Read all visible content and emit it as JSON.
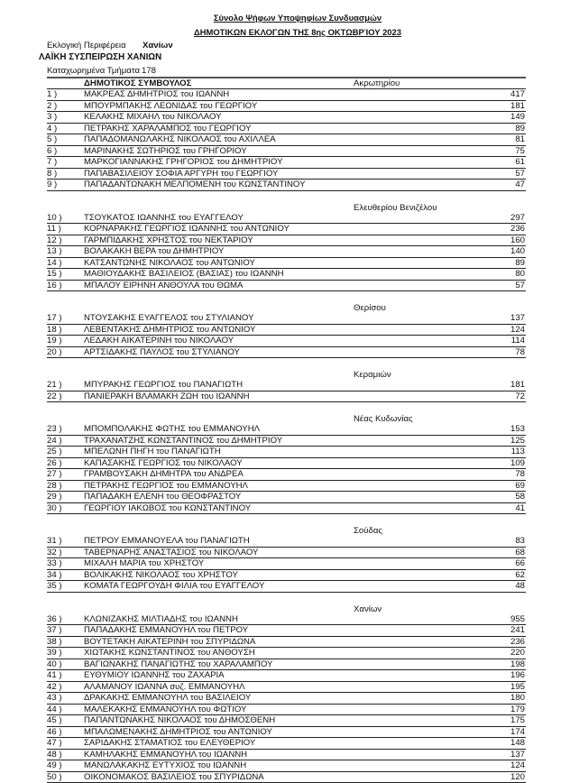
{
  "header": {
    "title": "Σύνολο Ψήφων Υποψηφίων Συνδυασμών",
    "subtitle": "ΔΗΜΟΤΙΚΩΝ ΕΚΛΟΓΩΝ ΤΗΣ  8ης ΟΚΤΩΒΡΊΟΥ 2023",
    "region_label": "Εκλογική Περιφέρεια",
    "region_value": "Χανίων",
    "party": "ΛΑΪΚΗ ΣΥΣΠΕΙΡΩΣΗ ΧΑΝΙΩΝ",
    "registered_label": "Καταχωρημένα Τμήματα",
    "registered_value": "178",
    "column_label": "ΔΗΜΟΤΙΚΟΣ ΣΥΜΒΟΥΛΟΣ"
  },
  "groups": [
    {
      "heading": "Ακρωτηρίου",
      "rows": [
        {
          "num": "1 )",
          "name": "ΜΑΚΡΕΑΣ ΔΗΜΗΤΡΙΟΣ του ΙΩΑΝΝΗ",
          "votes": "417"
        },
        {
          "num": "2 )",
          "name": "ΜΠΟΥΡΜΠΑΚΗΣ ΛΕΩΝΙΔΑΣ του ΓΕΩΡΓΙΟΥ",
          "votes": "181"
        },
        {
          "num": "3 )",
          "name": "ΚΕΛΑΚΗΣ ΜΙΧΑΗΛ του ΝΙΚΟΛΑΟΥ",
          "votes": "149"
        },
        {
          "num": "4 )",
          "name": "ΠΕΤΡΑΚΗΣ ΧΑΡΑΛΑΜΠΟΣ του ΓΕΩΡΓΙΟΥ",
          "votes": "89"
        },
        {
          "num": "5 )",
          "name": "ΠΑΠΑΔΟΜΑΝΩΛΑΚΗΣ ΝΙΚΟΛΑΟΣ του ΑΧΙΛΛΕΑ",
          "votes": "81"
        },
        {
          "num": "6 )",
          "name": "ΜΑΡΙΝΑΚΗΣ ΣΩΤΗΡΙΟΣ του ΓΡΗΓΟΡΙΟΥ",
          "votes": "75"
        },
        {
          "num": "7 )",
          "name": "ΜΑΡΚΟΓΙΑΝΝΑΚΗΣ ΓΡΗΓΟΡΙΟΣ του ΔΗΜΗΤΡΙΟΥ",
          "votes": "61"
        },
        {
          "num": "8 )",
          "name": "ΠΑΠΑΒΑΣΙΛΕΙΟΥ ΣΟΦΙΑ ΑΡΓΥΡΗ του ΓΕΩΡΓΙΟΥ",
          "votes": "57"
        },
        {
          "num": "9 )",
          "name": "ΠΑΠΑΔΑΝΤΩΝΑΚΗ ΜΕΛΠΟΜΕΝΗ του ΚΩΝΣΤΑΝΤΙΝΟΥ",
          "votes": "47"
        }
      ]
    },
    {
      "heading": "Ελευθερίου Βενιζέλου",
      "rows": [
        {
          "num": "10 )",
          "name": "ΤΣΟΥΚΑΤΟΣ ΙΩΑΝΝΗΣ του ΕΥΑΓΓΕΛΟΥ",
          "votes": "297"
        },
        {
          "num": "11 )",
          "name": "ΚΟΡΝΑΡΑΚΗΣ ΓΕΩΡΓΙΟΣ ΙΩΑΝΝΗΣ του ΑΝΤΩΝΙΟΥ",
          "votes": "236"
        },
        {
          "num": "12 )",
          "name": "ΓΑΡΜΠΙΔΑΚΗΣ ΧΡΗΣΤΟΣ του ΝΕΚΤΑΡΙΟΥ",
          "votes": "160"
        },
        {
          "num": "13 )",
          "name": "ΒΟΛΑΚΑΚΗ ΒΕΡΑ του ΔΗΜΗΤΡΙΟΥ",
          "votes": "140"
        },
        {
          "num": "14 )",
          "name": "ΚΑΤΣΑΝΤΩΝΗΣ ΝΙΚΟΛΑΟΣ του ΑΝΤΩΝΙΟΥ",
          "votes": "89"
        },
        {
          "num": "15 )",
          "name": "ΜΑΘΙΟΥΔΑΚΗΣ ΒΑΣΙΛΕΙΟΣ (ΒΑΣΙΑΣ) του ΙΩΑΝΝΗ",
          "votes": "80"
        },
        {
          "num": "16 )",
          "name": "ΜΠΑΛΟΥ ΕΙΡΗΝΗ ΑΝΘΟΥΛΑ του ΘΩΜΑ",
          "votes": "57"
        }
      ]
    },
    {
      "heading": "Θερίσου",
      "rows": [
        {
          "num": "17 )",
          "name": "ΝΤΟΥΣΑΚΗΣ ΕΥΑΓΓΕΛΟΣ του ΣΤΥΛΙΑΝΟΥ",
          "votes": "137"
        },
        {
          "num": "18 )",
          "name": "ΛΕΒΕΝΤΑΚΗΣ ΔΗΜΗΤΡΙΟΣ του ΑΝΤΩΝΙΟΥ",
          "votes": "124"
        },
        {
          "num": "19 )",
          "name": "ΛΕΔΑΚΗ ΑΙΚΑΤΕΡΙΝΗ του ΝΙΚΟΛΑΟΥ",
          "votes": "114"
        },
        {
          "num": "20 )",
          "name": "ΑΡΤΣΙΔΑΚΗΣ ΠΑΥΛΟΣ του ΣΤΥΛΙΑΝΟΥ",
          "votes": "78"
        }
      ]
    },
    {
      "heading": "Κεραμιών",
      "rows": [
        {
          "num": "21 )",
          "name": "ΜΠΥΡΑΚΗΣ ΓΕΩΡΓΙΟΣ του ΠΑΝΑΓΙΩΤΗ",
          "votes": "181"
        },
        {
          "num": "22 )",
          "name": "ΠΑΝΙΕΡΑΚΗ ΒΛΑΜΑΚΗ ΖΩΗ του ΙΩΑΝΝΗ",
          "votes": "72"
        }
      ]
    },
    {
      "heading": "Νέας Κυδωνίας",
      "rows": [
        {
          "num": "23 )",
          "name": "ΜΠΟΜΠΟΛΑΚΗΣ ΦΩΤΗΣ του ΕΜΜΑΝΟΥΗΛ",
          "votes": "153"
        },
        {
          "num": "24 )",
          "name": "ΤΡΑΧΑΝΑΤΖΗΣ ΚΩΝΣΤΑΝΤΙΝΟΣ του ΔΗΜΗΤΡΙΟΥ",
          "votes": "125"
        },
        {
          "num": "25 )",
          "name": "ΜΠΕΛΩΝΗ ΠΗΓΗ του ΠΑΝΑΓΙΩΤΗ",
          "votes": "113"
        },
        {
          "num": "26 )",
          "name": "ΚΑΠΑΣΑΚΗΣ ΓΕΩΡΓΙΟΣ του ΝΙΚΟΛΑΟΥ",
          "votes": "109"
        },
        {
          "num": "27 )",
          "name": "ΓΡΑΜΒΟΥΣΑΚΗ ΔΗΜΗΤΡΑ του ΑΝΔΡΕΑ",
          "votes": "78"
        },
        {
          "num": "28 )",
          "name": "ΠΕΤΡΑΚΗΣ ΓΕΩΡΓΙΟΣ του ΕΜΜΑΝΟΥΗΛ",
          "votes": "69"
        },
        {
          "num": "29 )",
          "name": "ΠΑΠΑΔΑΚΗ ΕΛΕΝΗ του ΘΕΟΦΡΑΣΤΟΥ",
          "votes": "58"
        },
        {
          "num": "30 )",
          "name": "ΓΕΩΡΓΙΟΥ ΙΑΚΩΒΟΣ του ΚΩΝΣΤΑΝΤΙΝΟΥ",
          "votes": "41"
        }
      ]
    },
    {
      "heading": "Σούδας",
      "rows": [
        {
          "num": "31 )",
          "name": "ΠΕΤΡΟΥ ΕΜΜΑΝΟΥΕΛΑ του ΠΑΝΑΓΙΩΤΗ",
          "votes": "83"
        },
        {
          "num": "32 )",
          "name": "ΤΑΒΕΡΝΑΡΗΣ ΑΝΑΣΤΑΣΙΟΣ του ΝΙΚΟΛΑΟΥ",
          "votes": "68"
        },
        {
          "num": "33 )",
          "name": "ΜΙΧΑΛΗ ΜΑΡΙΑ του ΧΡΗΣΤΟΥ",
          "votes": "66"
        },
        {
          "num": "34 )",
          "name": "ΒΟΛΙΚΑΚΗΣ ΝΙΚΟΛΑΟΣ του ΧΡΗΣΤΟΥ",
          "votes": "62"
        },
        {
          "num": "35 )",
          "name": "ΚΟΜΑΤΑ ΓΕΩΡΓΟΥΔΗ ΦΙΛΙΑ του ΕΥΑΓΓΕΛΟΥ",
          "votes": "48"
        }
      ]
    },
    {
      "heading": "Χανίων",
      "rows": [
        {
          "num": "36 )",
          "name": "ΚΛΩΝΙΖΑΚΗΣ ΜΙΛΤΙΑΔΗΣ του ΙΩΑΝΝΗ",
          "votes": "955"
        },
        {
          "num": "37 )",
          "name": "ΠΑΠΑΔΑΚΗΣ ΕΜΜΑΝΟΥΗΛ του ΠΕΤΡΟΥ",
          "votes": "241"
        },
        {
          "num": "38 )",
          "name": "ΒΟΥΤΕΤΑΚΗ ΑΙΚΑΤΕΡΙΝΗ του ΣΠΥΡΙΔΩΝΑ",
          "votes": "236"
        },
        {
          "num": "39 )",
          "name": "ΧΙΩΤΑΚΗΣ ΚΩΝΣΤΑΝΤΙΝΟΣ του ΑΝΘΟΥΣΗ",
          "votes": "220"
        },
        {
          "num": "40 )",
          "name": "ΒΑΓΙΩΝΑΚΗΣ ΠΑΝΑΓΙΩΤΗΣ του ΧΑΡΑΛΑΜΠΟΥ",
          "votes": "198"
        },
        {
          "num": "41 )",
          "name": "ΕΥΘΥΜΙΟΥ ΙΩΑΝΝΗΣ του ΖΑΧΑΡΙΑ",
          "votes": "196"
        },
        {
          "num": "42 )",
          "name": "ΑΛΑΜΑΝΟΥ ΙΩΑΝΝΑ συζ. ΕΜΜΑΝΟΥΗΛ",
          "votes": "195"
        },
        {
          "num": "43 )",
          "name": "ΔΡΑΚΑΚΗΣ ΕΜΜΑΝΟΥΗΛ του ΒΑΣΙΛΕΙΟΥ",
          "votes": "180"
        },
        {
          "num": "44 )",
          "name": "ΜΑΛΕΚΑΚΗΣ ΕΜΜΑΝΟΥΗΛ του ΦΩΤΙΟΥ",
          "votes": "179"
        },
        {
          "num": "45 )",
          "name": "ΠΑΠΑΝΤΩΝΑΚΗΣ ΝΙΚΟΛΑΟΣ του ΔΗΜΟΣΘΕΝΗ",
          "votes": "175"
        },
        {
          "num": "46 )",
          "name": "ΜΠΑΛΩΜΕΝΑΚΗΣ ΔΗΜΗΤΡΙΟΣ του ΑΝΤΩΝΙΟΥ",
          "votes": "174"
        },
        {
          "num": "47 )",
          "name": "ΣΑΡΙΔΑΚΗΣ ΣΤΑΜΑΤΙΟΣ του ΕΛΕΥΘΕΡΙΟΥ",
          "votes": "148"
        },
        {
          "num": "48 )",
          "name": "ΚΑΜΗΛΑΚΗΣ ΕΜΜΑΝΟΥΗΛ του ΙΩΑΝΝΗ",
          "votes": "137"
        },
        {
          "num": "49 )",
          "name": "ΜΑΝΩΛΑΚΑΚΗΣ ΕΥΤΥΧΙΟΣ του ΙΩΑΝΝΗ",
          "votes": "124"
        },
        {
          "num": "50 )",
          "name": "ΟΙΚΟΝΟΜΑΚΟΣ ΒΑΣΙΛΕΙΟΣ του ΣΠΥΡΙΔΩΝΑ",
          "votes": "120"
        }
      ]
    }
  ]
}
